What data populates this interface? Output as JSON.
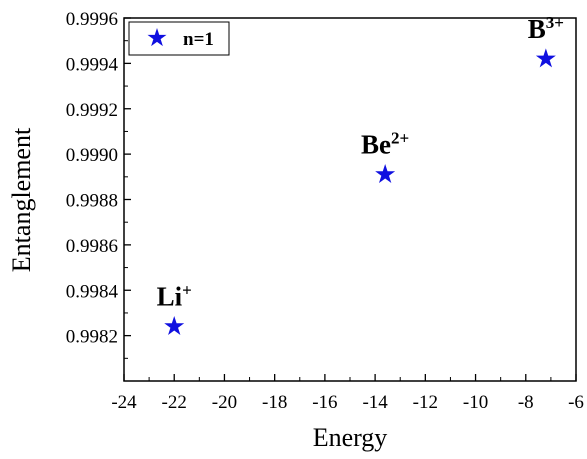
{
  "chart_data": {
    "type": "scatter",
    "xlabel": "Energy",
    "ylabel": "Entanglement",
    "xlim": [
      -24,
      -6
    ],
    "ylim": [
      0.998,
      0.9996
    ],
    "x_ticks": [
      "-24",
      "-22",
      "-20",
      "-18",
      "-16",
      "-14",
      "-12",
      "-10",
      "-8",
      "-6"
    ],
    "y_ticks": [
      "0.9982",
      "0.9984",
      "0.9986",
      "0.9988",
      "0.9990",
      "0.9992",
      "0.9994",
      "0.9996"
    ],
    "grid": false,
    "legend_position": "top-left",
    "marker": "star",
    "color": "#1010e0",
    "series": [
      {
        "name": "n=1",
        "points": [
          {
            "x": -22.0,
            "y": 0.99824
          },
          {
            "x": -13.6,
            "y": 0.99891
          },
          {
            "x": -7.2,
            "y": 0.99942
          }
        ]
      }
    ],
    "annotations": [
      {
        "base": "Li",
        "sup": "+",
        "x": -22.0,
        "y": 0.99824
      },
      {
        "base": "Be",
        "sup": "2+",
        "x": -13.6,
        "y": 0.99891
      },
      {
        "base": "B",
        "sup": "3+",
        "x": -7.2,
        "y": 0.99942
      }
    ]
  }
}
